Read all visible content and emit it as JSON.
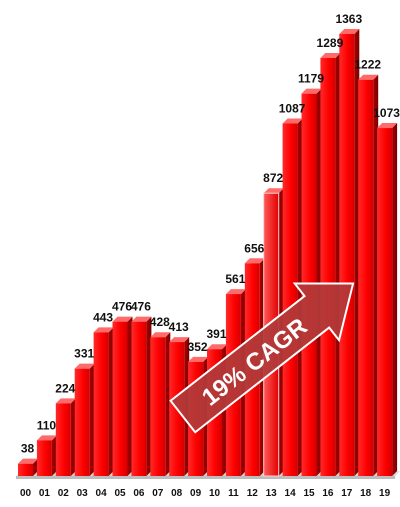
{
  "chart_data": {
    "type": "bar",
    "categories": [
      "00",
      "01",
      "02",
      "03",
      "04",
      "05",
      "06",
      "07",
      "08",
      "09",
      "10",
      "11",
      "12",
      "13",
      "14",
      "15",
      "16",
      "17",
      "18",
      "19"
    ],
    "values": [
      38,
      110,
      224,
      331,
      443,
      476,
      476,
      428,
      413,
      352,
      391,
      561,
      656,
      872,
      1087,
      1179,
      1289,
      1363,
      1222,
      1073
    ],
    "data_labels": [
      "38",
      "110",
      "224",
      "331",
      "443",
      "476",
      "476",
      "428",
      "413",
      "352",
      "391",
      "561",
      "656",
      "872",
      "1087",
      "1179",
      "1289",
      "1363",
      "1222",
      "1073"
    ],
    "ylim": [
      0,
      1400
    ],
    "grid": false,
    "legend": "none",
    "bar_color": "#ff0000",
    "highlight_index": 13,
    "annotation": {
      "text": "19% CAGR",
      "color": "#b23a3a"
    }
  }
}
